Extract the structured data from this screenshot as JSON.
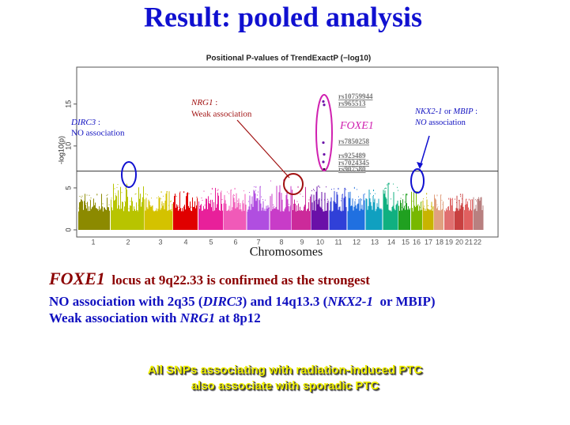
{
  "slide_title": "Result: pooled analysis",
  "chart_data": {
    "type": "manhattan",
    "title": "Positional P-values of TrendExactP (−log10)",
    "y_label": "-log10(p)",
    "x_label": "Chromosomes",
    "categories": [
      "1",
      "2",
      "3",
      "4",
      "5",
      "6",
      "7",
      "8",
      "9",
      "10",
      "11",
      "12",
      "13",
      "14",
      "15",
      "16",
      "17",
      "18",
      "19",
      "20",
      "21",
      "22"
    ],
    "values": [
      4.3,
      5.5,
      4.6,
      4.6,
      5.0,
      5.0,
      5.2,
      6.0,
      5.2,
      5.3,
      5.0,
      5.1,
      4.8,
      5.6,
      4.3,
      4.6,
      4.4,
      4.2,
      3.8,
      4.3,
      3.7,
      3.9
    ],
    "colors": [
      "#8c8a00",
      "#b8c400",
      "#d4c200",
      "#e00000",
      "#e8209a",
      "#f05ab8",
      "#b04ee0",
      "#c83cc8",
      "#cc2a9a",
      "#6a10a8",
      "#3040d8",
      "#2070e0",
      "#10a0c0",
      "#10b080",
      "#20a020",
      "#78b800",
      "#c8b400",
      "#e0a080",
      "#e07070",
      "#c84040",
      "#e06060",
      "#b88080"
    ],
    "snps": [
      {
        "name": "rs10759944",
        "value": 15.3
      },
      {
        "name": "rs965513",
        "value": 14.9
      },
      {
        "name": "rs7850258",
        "value": 10.4
      },
      {
        "name": "rs925489",
        "value": 9.0
      },
      {
        "name": "rs7024345",
        "value": 8.1
      },
      {
        "name": "rs907580",
        "value": 7.2
      }
    ],
    "threshold": 7,
    "ylim": [
      -0.85,
      19.4
    ],
    "yticks": [
      0,
      5,
      10,
      15
    ],
    "annotations": {
      "dirc3": [
        "DIRC3",
        " :",
        "NO association"
      ],
      "nrg1": [
        "NRG1",
        " :",
        "Weak association"
      ],
      "foxe1": "FOXE1",
      "nkx": [
        "NKX2-1",
        " or ",
        "MBIP",
        " :",
        "NO",
        " association"
      ]
    }
  },
  "summary": {
    "line1": [
      "FOXE1",
      "  locus at 9q22.33 is confirmed as the strongest"
    ],
    "line2": [
      "NO association with 2q35 (",
      "DIRC3",
      ") and 14q13.3 (",
      "NKX2-1",
      "  or MBIP)"
    ],
    "line3": [
      "Weak association with ",
      "NRG1",
      " at 8p12"
    ]
  },
  "footer": [
    "All SNPs associating with radiation-induced PTC",
    "also associate with sporadic PTC"
  ]
}
